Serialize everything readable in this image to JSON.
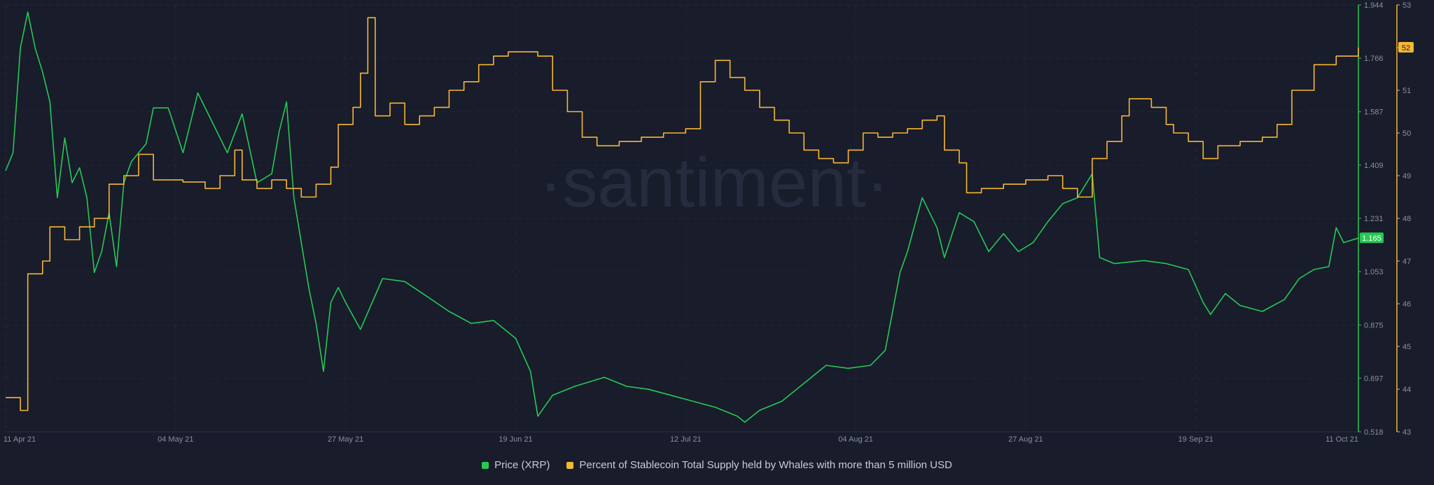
{
  "watermark": "·santiment·",
  "chart_data": {
    "type": "line",
    "x_ticks": [
      "11 Apr 21",
      "04 May 21",
      "27 May 21",
      "19 Jun 21",
      "12 Jul 21",
      "04 Aug 21",
      "27 Aug 21",
      "19 Sep 21",
      "11 Oct 21"
    ],
    "x_range": [
      "2021-04-11",
      "2021-10-11"
    ],
    "grid": true,
    "legend_position": "bottom-center",
    "y_axes": {
      "price": {
        "range": [
          0.518,
          1.944
        ],
        "ticks": [
          "0.518",
          "0.697",
          "0.875",
          "1.053",
          "1.231",
          "1.409",
          "1.587",
          "1.766",
          "1.944"
        ],
        "color": "#26c953",
        "current_label": "1.165"
      },
      "whales": {
        "range": [
          43,
          53
        ],
        "ticks": [
          "43",
          "44",
          "45",
          "46",
          "47",
          "48",
          "49",
          "50",
          "51",
          "52",
          "53"
        ],
        "color": "#f7b731",
        "current_label": "52"
      }
    },
    "series": [
      {
        "name": "Price (XRP)",
        "axis": "price",
        "color": "#26c953",
        "points": [
          [
            "2021-04-11",
            1.39
          ],
          [
            "2021-04-12",
            1.45
          ],
          [
            "2021-04-13",
            1.8
          ],
          [
            "2021-04-14",
            1.92
          ],
          [
            "2021-04-15",
            1.8
          ],
          [
            "2021-04-16",
            1.72
          ],
          [
            "2021-04-17",
            1.62
          ],
          [
            "2021-04-18",
            1.3
          ],
          [
            "2021-04-19",
            1.5
          ],
          [
            "2021-04-20",
            1.35
          ],
          [
            "2021-04-21",
            1.4
          ],
          [
            "2021-04-22",
            1.3
          ],
          [
            "2021-04-23",
            1.05
          ],
          [
            "2021-04-24",
            1.12
          ],
          [
            "2021-04-25",
            1.25
          ],
          [
            "2021-04-26",
            1.07
          ],
          [
            "2021-04-27",
            1.35
          ],
          [
            "2021-04-28",
            1.42
          ],
          [
            "2021-04-29",
            1.45
          ],
          [
            "2021-04-30",
            1.48
          ],
          [
            "2021-05-01",
            1.6
          ],
          [
            "2021-05-03",
            1.6
          ],
          [
            "2021-05-05",
            1.45
          ],
          [
            "2021-05-07",
            1.65
          ],
          [
            "2021-05-09",
            1.55
          ],
          [
            "2021-05-11",
            1.45
          ],
          [
            "2021-05-13",
            1.58
          ],
          [
            "2021-05-15",
            1.35
          ],
          [
            "2021-05-17",
            1.38
          ],
          [
            "2021-05-18",
            1.52
          ],
          [
            "2021-05-19",
            1.62
          ],
          [
            "2021-05-20",
            1.3
          ],
          [
            "2021-05-21",
            1.15
          ],
          [
            "2021-05-22",
            1.0
          ],
          [
            "2021-05-23",
            0.88
          ],
          [
            "2021-05-24",
            0.72
          ],
          [
            "2021-05-25",
            0.95
          ],
          [
            "2021-05-26",
            1.0
          ],
          [
            "2021-05-27",
            0.95
          ],
          [
            "2021-05-29",
            0.86
          ],
          [
            "2021-06-01",
            1.03
          ],
          [
            "2021-06-04",
            1.02
          ],
          [
            "2021-06-07",
            0.97
          ],
          [
            "2021-06-10",
            0.92
          ],
          [
            "2021-06-13",
            0.88
          ],
          [
            "2021-06-16",
            0.89
          ],
          [
            "2021-06-19",
            0.83
          ],
          [
            "2021-06-21",
            0.72
          ],
          [
            "2021-06-22",
            0.57
          ],
          [
            "2021-06-24",
            0.64
          ],
          [
            "2021-06-27",
            0.67
          ],
          [
            "2021-07-01",
            0.7
          ],
          [
            "2021-07-04",
            0.67
          ],
          [
            "2021-07-07",
            0.66
          ],
          [
            "2021-07-10",
            0.64
          ],
          [
            "2021-07-13",
            0.62
          ],
          [
            "2021-07-16",
            0.6
          ],
          [
            "2021-07-19",
            0.57
          ],
          [
            "2021-07-20",
            0.55
          ],
          [
            "2021-07-22",
            0.59
          ],
          [
            "2021-07-25",
            0.62
          ],
          [
            "2021-07-28",
            0.68
          ],
          [
            "2021-07-31",
            0.74
          ],
          [
            "2021-08-03",
            0.73
          ],
          [
            "2021-08-06",
            0.74
          ],
          [
            "2021-08-08",
            0.79
          ],
          [
            "2021-08-10",
            1.05
          ],
          [
            "2021-08-11",
            1.12
          ],
          [
            "2021-08-13",
            1.3
          ],
          [
            "2021-08-15",
            1.2
          ],
          [
            "2021-08-16",
            1.1
          ],
          [
            "2021-08-18",
            1.25
          ],
          [
            "2021-08-20",
            1.22
          ],
          [
            "2021-08-22",
            1.12
          ],
          [
            "2021-08-24",
            1.18
          ],
          [
            "2021-08-26",
            1.12
          ],
          [
            "2021-08-28",
            1.15
          ],
          [
            "2021-08-30",
            1.22
          ],
          [
            "2021-09-01",
            1.28
          ],
          [
            "2021-09-03",
            1.3
          ],
          [
            "2021-09-05",
            1.38
          ],
          [
            "2021-09-06",
            1.1
          ],
          [
            "2021-09-08",
            1.08
          ],
          [
            "2021-09-12",
            1.09
          ],
          [
            "2021-09-15",
            1.08
          ],
          [
            "2021-09-18",
            1.06
          ],
          [
            "2021-09-20",
            0.95
          ],
          [
            "2021-09-21",
            0.91
          ],
          [
            "2021-09-23",
            0.98
          ],
          [
            "2021-09-25",
            0.94
          ],
          [
            "2021-09-28",
            0.92
          ],
          [
            "2021-10-01",
            0.96
          ],
          [
            "2021-10-03",
            1.03
          ],
          [
            "2021-10-05",
            1.06
          ],
          [
            "2021-10-07",
            1.07
          ],
          [
            "2021-10-08",
            1.2
          ],
          [
            "2021-10-09",
            1.15
          ],
          [
            "2021-10-11",
            1.165
          ]
        ]
      },
      {
        "name": "Percent of Stablecoin Total Supply held by Whales with more than 5 million USD",
        "axis": "whales",
        "color": "#f7b731",
        "points": [
          [
            "2021-04-11",
            43.8
          ],
          [
            "2021-04-13",
            43.5
          ],
          [
            "2021-04-14",
            46.7
          ],
          [
            "2021-04-16",
            47.0
          ],
          [
            "2021-04-17",
            47.8
          ],
          [
            "2021-04-19",
            47.5
          ],
          [
            "2021-04-21",
            47.8
          ],
          [
            "2021-04-23",
            48.0
          ],
          [
            "2021-04-25",
            48.8
          ],
          [
            "2021-04-27",
            49.0
          ],
          [
            "2021-04-29",
            49.5
          ],
          [
            "2021-05-01",
            48.9
          ],
          [
            "2021-05-05",
            48.85
          ],
          [
            "2021-05-08",
            48.7
          ],
          [
            "2021-05-10",
            49.0
          ],
          [
            "2021-05-12",
            49.6
          ],
          [
            "2021-05-13",
            48.9
          ],
          [
            "2021-05-15",
            48.7
          ],
          [
            "2021-05-17",
            48.9
          ],
          [
            "2021-05-19",
            48.7
          ],
          [
            "2021-05-21",
            48.5
          ],
          [
            "2021-05-23",
            48.8
          ],
          [
            "2021-05-25",
            49.2
          ],
          [
            "2021-05-26",
            50.2
          ],
          [
            "2021-05-28",
            50.6
          ],
          [
            "2021-05-29",
            51.4
          ],
          [
            "2021-05-30",
            52.7
          ],
          [
            "2021-05-31",
            50.4
          ],
          [
            "2021-06-02",
            50.7
          ],
          [
            "2021-06-04",
            50.2
          ],
          [
            "2021-06-06",
            50.4
          ],
          [
            "2021-06-08",
            50.6
          ],
          [
            "2021-06-10",
            51.0
          ],
          [
            "2021-06-12",
            51.2
          ],
          [
            "2021-06-14",
            51.6
          ],
          [
            "2021-06-16",
            51.8
          ],
          [
            "2021-06-18",
            51.9
          ],
          [
            "2021-06-22",
            51.8
          ],
          [
            "2021-06-24",
            51.0
          ],
          [
            "2021-06-26",
            50.5
          ],
          [
            "2021-06-28",
            49.9
          ],
          [
            "2021-06-30",
            49.7
          ],
          [
            "2021-07-03",
            49.8
          ],
          [
            "2021-07-06",
            49.9
          ],
          [
            "2021-07-09",
            50.0
          ],
          [
            "2021-07-12",
            50.1
          ],
          [
            "2021-07-14",
            51.2
          ],
          [
            "2021-07-16",
            51.7
          ],
          [
            "2021-07-18",
            51.3
          ],
          [
            "2021-07-20",
            51.0
          ],
          [
            "2021-07-22",
            50.6
          ],
          [
            "2021-07-24",
            50.3
          ],
          [
            "2021-07-26",
            50.0
          ],
          [
            "2021-07-28",
            49.6
          ],
          [
            "2021-07-30",
            49.4
          ],
          [
            "2021-08-01",
            49.3
          ],
          [
            "2021-08-03",
            49.6
          ],
          [
            "2021-08-05",
            50.0
          ],
          [
            "2021-08-07",
            49.9
          ],
          [
            "2021-08-09",
            50.0
          ],
          [
            "2021-08-11",
            50.1
          ],
          [
            "2021-08-13",
            50.3
          ],
          [
            "2021-08-15",
            50.4
          ],
          [
            "2021-08-16",
            49.6
          ],
          [
            "2021-08-18",
            49.3
          ],
          [
            "2021-08-19",
            48.6
          ],
          [
            "2021-08-21",
            48.7
          ],
          [
            "2021-08-24",
            48.8
          ],
          [
            "2021-08-27",
            48.9
          ],
          [
            "2021-08-30",
            49.0
          ],
          [
            "2021-09-01",
            48.7
          ],
          [
            "2021-09-03",
            48.5
          ],
          [
            "2021-09-05",
            49.4
          ],
          [
            "2021-09-07",
            49.8
          ],
          [
            "2021-09-09",
            50.4
          ],
          [
            "2021-09-10",
            50.8
          ],
          [
            "2021-09-13",
            50.6
          ],
          [
            "2021-09-15",
            50.2
          ],
          [
            "2021-09-16",
            50.0
          ],
          [
            "2021-09-18",
            49.8
          ],
          [
            "2021-09-20",
            49.4
          ],
          [
            "2021-09-22",
            49.7
          ],
          [
            "2021-09-25",
            49.8
          ],
          [
            "2021-09-28",
            49.9
          ],
          [
            "2021-09-30",
            50.2
          ],
          [
            "2021-10-02",
            51.0
          ],
          [
            "2021-10-05",
            51.6
          ],
          [
            "2021-10-08",
            51.8
          ],
          [
            "2021-10-11",
            52.0
          ]
        ]
      }
    ]
  }
}
